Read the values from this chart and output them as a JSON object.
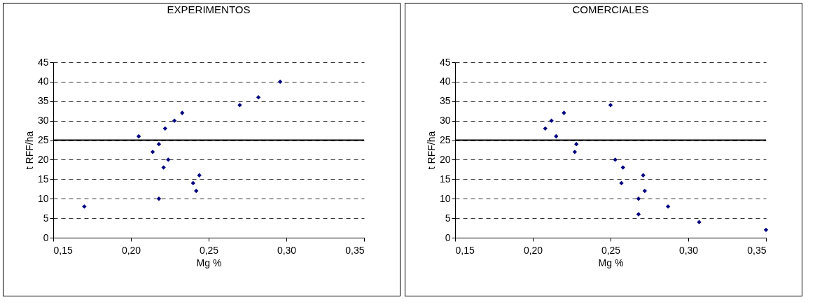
{
  "chart_data": [
    {
      "type": "scatter",
      "title": "EXPERIMENTOS",
      "xlabel": "Mg %",
      "ylabel": "t RFF/ha",
      "marker": "diamond",
      "grid": "y",
      "xlim": [
        0.15,
        0.35
      ],
      "xticks": [
        {
          "value": 0.15,
          "label": "0,15"
        },
        {
          "value": 0.2,
          "label": "0,20"
        },
        {
          "value": 0.25,
          "label": "0,25"
        },
        {
          "value": 0.3,
          "label": "0,30"
        },
        {
          "value": 0.35,
          "label": "0,35"
        }
      ],
      "ylim": [
        0,
        45
      ],
      "yticks": [
        0,
        5,
        10,
        15,
        20,
        25,
        30,
        35,
        40,
        45
      ],
      "ref_lines": [
        {
          "axis": "y",
          "value": 25,
          "color": "#000000"
        }
      ],
      "series": [
        {
          "color": "#000080",
          "x": [
            0.17,
            0.205,
            0.214,
            0.218,
            0.218,
            0.221,
            0.222,
            0.224,
            0.228,
            0.233,
            0.24,
            0.242,
            0.244,
            0.27,
            0.282,
            0.296
          ],
          "values": [
            8,
            26,
            22,
            24,
            10,
            18,
            28,
            20,
            30,
            32,
            14,
            12,
            16,
            34,
            36,
            40
          ]
        }
      ]
    },
    {
      "type": "scatter",
      "title": "COMERCIALES",
      "xlabel": "Mg %",
      "ylabel": "t RFF/ha",
      "marker": "diamond",
      "grid": "y",
      "xlim": [
        0.15,
        0.35
      ],
      "xticks": [
        {
          "value": 0.15,
          "label": "0,15"
        },
        {
          "value": 0.2,
          "label": "0,20"
        },
        {
          "value": 0.25,
          "label": "0,25"
        },
        {
          "value": 0.3,
          "label": "0,30"
        },
        {
          "value": 0.35,
          "label": "0,35"
        }
      ],
      "ylim": [
        0,
        45
      ],
      "yticks": [
        0,
        5,
        10,
        15,
        20,
        25,
        30,
        35,
        40,
        45
      ],
      "ref_lines": [
        {
          "axis": "y",
          "value": 25,
          "color": "#000000"
        }
      ],
      "series": [
        {
          "color": "#000080",
          "x": [
            0.208,
            0.212,
            0.215,
            0.22,
            0.227,
            0.228,
            0.25,
            0.253,
            0.257,
            0.258,
            0.268,
            0.268,
            0.271,
            0.272,
            0.287,
            0.307,
            0.35
          ],
          "values": [
            28,
            30,
            26,
            32,
            22,
            24,
            34,
            20,
            14,
            18,
            10,
            6,
            16,
            12,
            8,
            4,
            2
          ]
        }
      ]
    }
  ]
}
